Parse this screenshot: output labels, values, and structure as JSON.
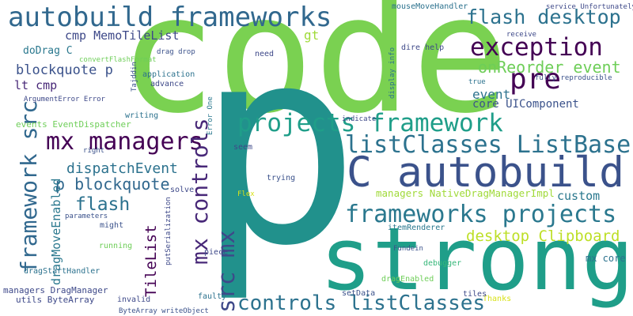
{
  "words": [
    {
      "text": "code",
      "color": "#7ad151"
    },
    {
      "text": "p",
      "color": "#21918c"
    },
    {
      "text": "strong",
      "color": "#1f9e89"
    },
    {
      "text": "autobuild frameworks",
      "color": "#31688e"
    },
    {
      "text": "C autobuild",
      "color": "#3b528b"
    },
    {
      "text": "listClasses ListBase",
      "color": "#2c728e"
    },
    {
      "text": "frameworks projects",
      "color": "#2a788e"
    },
    {
      "text": "projects framework",
      "color": "#1f9e89"
    },
    {
      "text": "mx managers",
      "color": "#440154"
    },
    {
      "text": "controls listClasses",
      "color": "#2c728e"
    },
    {
      "text": "mx controls",
      "color": "#482878"
    },
    {
      "text": "src mx",
      "color": "#3e4989"
    },
    {
      "text": "framework src",
      "color": "#31688e"
    },
    {
      "text": "exception",
      "color": "#440154"
    },
    {
      "text": "flash desktop",
      "color": "#2c728e"
    },
    {
      "text": "pre",
      "color": "#440154"
    },
    {
      "text": "onReorder event",
      "color": "#6ece58"
    },
    {
      "text": "desktop Clipboard",
      "color": "#bddf26"
    },
    {
      "text": "flash",
      "color": "#2c728e"
    },
    {
      "text": "dispatchEvent",
      "color": "#2c728e"
    },
    {
      "text": "p blockquote",
      "color": "#31688e"
    },
    {
      "text": "blockquote p",
      "color": "#3b528b"
    },
    {
      "text": "cmp MemoTileList",
      "color": "#3e4989"
    },
    {
      "text": "TileList",
      "color": "#440154"
    },
    {
      "text": "dragMoveEnabled",
      "color": "#2a788e"
    },
    {
      "text": "event",
      "color": "#2c728e"
    },
    {
      "text": "core UIComponent",
      "color": "#3b528b"
    },
    {
      "text": "managers NativeDragManagerImpl",
      "color": "#a0da39"
    },
    {
      "text": "managers DragManager",
      "color": "#3e4989"
    },
    {
      "text": "events EventDispatcher",
      "color": "#6ece58"
    },
    {
      "text": "custom",
      "color": "#2a788e"
    },
    {
      "text": "gt",
      "color": "#a0da39"
    },
    {
      "text": "doDrag C",
      "color": "#2a788e"
    },
    {
      "text": "lt cmp",
      "color": "#482878"
    },
    {
      "text": "ArgumentError Error",
      "color": "#3e4989"
    },
    {
      "text": "convertFlashFormat",
      "color": "#6ece58"
    },
    {
      "text": "itemRenderer",
      "color": "#2a788e"
    },
    {
      "text": "debugger",
      "color": "#35b779"
    },
    {
      "text": "mx core",
      "color": "#2c728e"
    },
    {
      "text": "Thanks",
      "color": "#d8e219"
    },
    {
      "text": "tiles",
      "color": "#3e4989"
    },
    {
      "text": "dragEnabled",
      "color": "#6ece58"
    },
    {
      "text": "setData",
      "color": "#3b528b"
    },
    {
      "text": "faulty",
      "color": "#2c728e"
    },
    {
      "text": "invalid",
      "color": "#3e4989"
    },
    {
      "text": "utils ByteArray",
      "color": "#3e4989"
    },
    {
      "text": "ByteArray writeObject",
      "color": "#3b528b"
    },
    {
      "text": "dragStartHandler",
      "color": "#2c728e"
    },
    {
      "text": "running",
      "color": "#6ece58"
    },
    {
      "text": "might",
      "color": "#3b528b"
    },
    {
      "text": "parameters",
      "color": "#3b528b"
    },
    {
      "text": "solve",
      "color": "#3e4989"
    },
    {
      "text": "seem",
      "color": "#3e4989"
    },
    {
      "text": "right",
      "color": "#3b528b"
    },
    {
      "text": "writing",
      "color": "#2c728e"
    },
    {
      "text": "advance",
      "color": "#3e4989"
    },
    {
      "text": "application",
      "color": "#2c728e"
    },
    {
      "text": "drag drop",
      "color": "#3b528b"
    },
    {
      "text": "need",
      "color": "#3e4989"
    },
    {
      "text": "mouseMoveHandler",
      "color": "#2c728e"
    },
    {
      "text": "dire help",
      "color": "#3e4989"
    },
    {
      "text": "receive",
      "color": "#3e4989"
    },
    {
      "text": "fully reproducible",
      "color": "#3b528b"
    },
    {
      "text": "true",
      "color": "#2c728e"
    },
    {
      "text": "indicate",
      "color": "#3e4989"
    },
    {
      "text": "trying",
      "color": "#3b528b"
    },
    {
      "text": "piece",
      "color": "#3e4989"
    },
    {
      "text": "Fundein",
      "color": "#3b528b"
    },
    {
      "text": "service Unfortunately",
      "color": "#3e4989"
    },
    {
      "text": "display info",
      "color": "#2c728e"
    },
    {
      "text": "Tajddin",
      "color": "#3b528b"
    },
    {
      "text": "Error One",
      "color": "#2a788e"
    },
    {
      "text": "putSerialization",
      "color": "#3e4989"
    },
    {
      "text": "Flex",
      "color": "#d8e219"
    }
  ]
}
